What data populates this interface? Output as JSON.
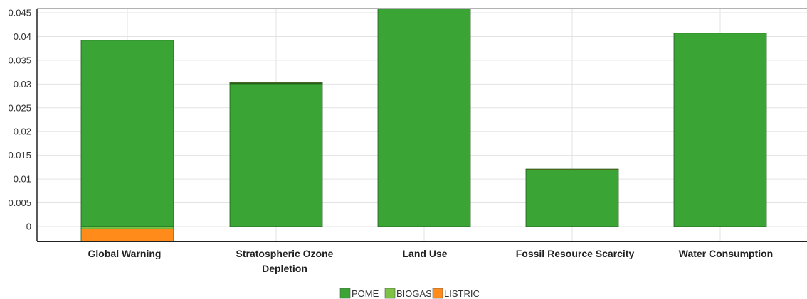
{
  "chart_data": {
    "type": "bar",
    "stacked": true,
    "categories": [
      [
        "Global Warning"
      ],
      [
        "Stratospheric Ozone",
        "Depletion"
      ],
      [
        "Land Use"
      ],
      [
        "Fossil Resource Scarcity"
      ],
      [
        "Water Consumption"
      ]
    ],
    "series": [
      {
        "name": "POME",
        "color": "#3aa535",
        "values": [
          0.0392,
          0.0301,
          0.0458,
          0.012,
          0.0407
        ]
      },
      {
        "name": "BIOGAS",
        "color": "#7dc243",
        "values": [
          -0.0005,
          0.0001,
          0.0,
          0.0,
          0.0
        ]
      },
      {
        "name": "LISTRIC",
        "color": "#ff8c1a",
        "values": [
          -0.0026,
          0.0001,
          0.0,
          0.0001,
          0.0
        ]
      }
    ],
    "y_ticks": [
      "0",
      "0.005",
      "0.01",
      "0.015",
      "0.02",
      "0.025",
      "0.03",
      "0.035",
      "0.04",
      "0.045"
    ],
    "ylim": [
      -0.0032,
      0.0458
    ],
    "grid": true,
    "legend_position": "bottom-center"
  }
}
